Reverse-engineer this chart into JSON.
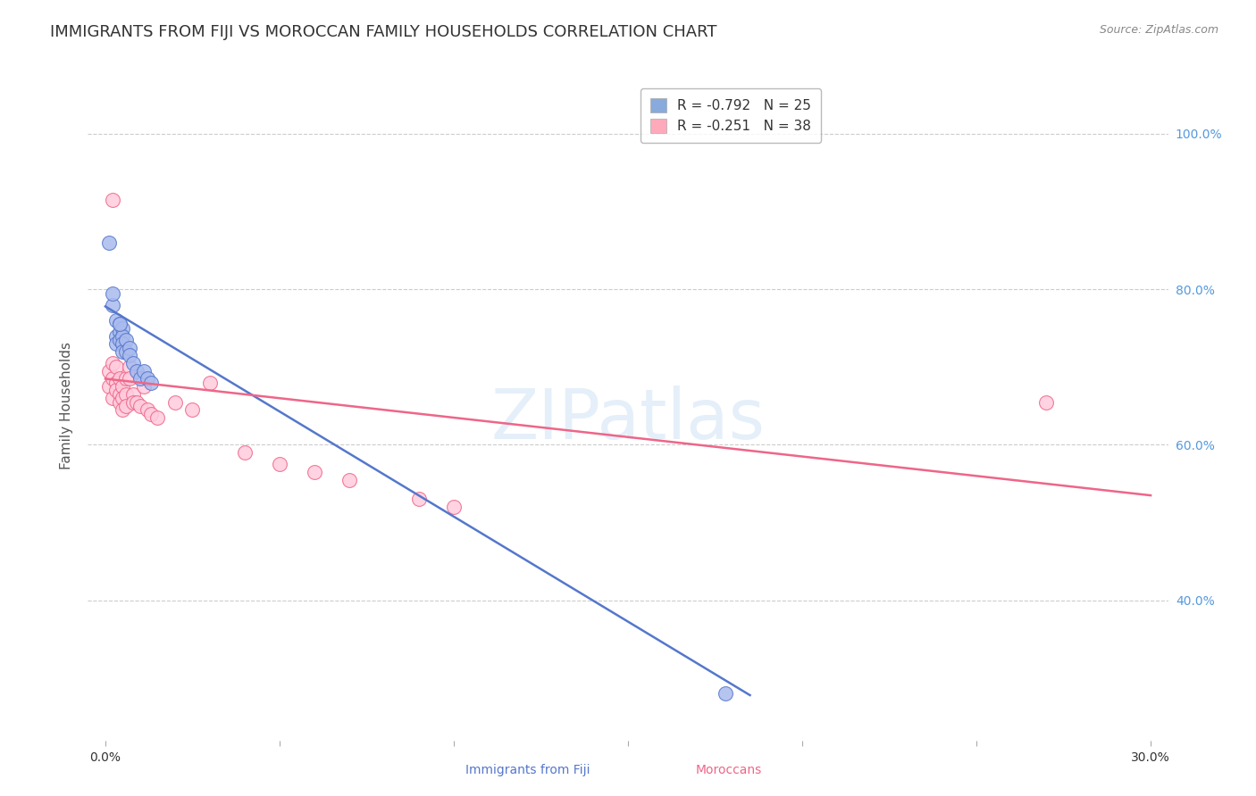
{
  "title": "IMMIGRANTS FROM FIJI VS MOROCCAN FAMILY HOUSEHOLDS CORRELATION CHART",
  "source": "Source: ZipAtlas.com",
  "ylabel": "Family Households",
  "watermark": "ZIPatlas",
  "legend": [
    {
      "label": "R = -0.792   N = 25",
      "color": "#88aadd"
    },
    {
      "label": "R = -0.251   N = 38",
      "color": "#ffaabb"
    }
  ],
  "fiji_x": [
    0.001,
    0.002,
    0.003,
    0.003,
    0.003,
    0.004,
    0.004,
    0.004,
    0.005,
    0.005,
    0.005,
    0.005,
    0.006,
    0.006,
    0.007,
    0.007,
    0.008,
    0.009,
    0.01,
    0.011,
    0.012,
    0.013,
    0.002,
    0.004,
    0.178
  ],
  "fiji_y": [
    0.86,
    0.78,
    0.76,
    0.74,
    0.73,
    0.755,
    0.745,
    0.735,
    0.75,
    0.74,
    0.73,
    0.72,
    0.735,
    0.72,
    0.725,
    0.715,
    0.705,
    0.695,
    0.685,
    0.695,
    0.685,
    0.68,
    0.795,
    0.755,
    0.28
  ],
  "morocco_x": [
    0.001,
    0.001,
    0.002,
    0.002,
    0.002,
    0.003,
    0.003,
    0.003,
    0.004,
    0.004,
    0.004,
    0.005,
    0.005,
    0.005,
    0.006,
    0.006,
    0.006,
    0.007,
    0.007,
    0.008,
    0.008,
    0.009,
    0.01,
    0.011,
    0.012,
    0.013,
    0.015,
    0.02,
    0.025,
    0.03,
    0.04,
    0.05,
    0.06,
    0.07,
    0.09,
    0.1,
    0.27,
    0.002
  ],
  "morocco_y": [
    0.695,
    0.675,
    0.705,
    0.685,
    0.66,
    0.7,
    0.68,
    0.67,
    0.685,
    0.665,
    0.655,
    0.675,
    0.66,
    0.645,
    0.685,
    0.665,
    0.65,
    0.7,
    0.685,
    0.665,
    0.655,
    0.655,
    0.65,
    0.675,
    0.645,
    0.64,
    0.635,
    0.655,
    0.645,
    0.68,
    0.59,
    0.575,
    0.565,
    0.555,
    0.53,
    0.52,
    0.655,
    0.915
  ],
  "fiji_line_x": [
    0.0,
    0.185
  ],
  "fiji_line_y": [
    0.778,
    0.278
  ],
  "morocco_line_x": [
    0.0,
    0.3
  ],
  "morocco_line_y": [
    0.685,
    0.535
  ],
  "fiji_color": "#5577cc",
  "fiji_scatter_color": "#aabbee",
  "fiji_edge_color": "#5577cc",
  "morocco_color": "#ee6688",
  "morocco_scatter_color": "#ffccdd",
  "morocco_edge_color": "#ee6688",
  "xlim": [
    -0.005,
    0.305
  ],
  "ylim": [
    0.22,
    1.08
  ],
  "xticks": [
    0.0,
    0.05,
    0.1,
    0.15,
    0.2,
    0.25,
    0.3
  ],
  "ytick_vals": [
    1.0,
    0.8,
    0.6,
    0.4
  ],
  "right_ytick_labels": [
    "100.0%",
    "80.0%",
    "60.0%",
    "40.0%"
  ],
  "background_color": "#ffffff",
  "grid_color": "#cccccc",
  "title_fontsize": 13,
  "axis_label_fontsize": 11,
  "tick_fontsize": 10,
  "legend_fontsize": 11
}
